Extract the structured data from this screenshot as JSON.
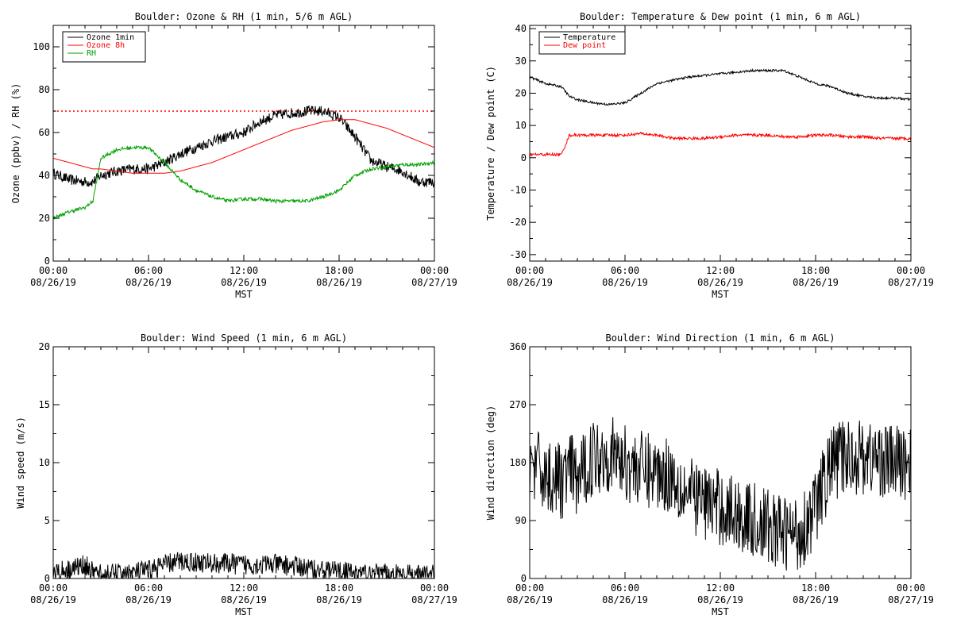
{
  "chart_data": [
    {
      "type": "line",
      "title": "Boulder: Ozone & RH (1 min, 5/6 m AGL)",
      "xlabel": "MST",
      "ylabel": "Ozone (ppbv) / RH (%)",
      "xlim": [
        "08/26/19 00:00",
        "08/27/19 00:00"
      ],
      "ylim": [
        0,
        110
      ],
      "grid": false,
      "legend_position": "top-left",
      "xticks": [
        {
          "label": "00:00",
          "sublabel": "08/26/19"
        },
        {
          "label": "06:00",
          "sublabel": "08/26/19"
        },
        {
          "label": "12:00",
          "sublabel": "08/26/19"
        },
        {
          "label": "18:00",
          "sublabel": "08/26/19"
        },
        {
          "label": "00:00",
          "sublabel": "08/27/19"
        }
      ],
      "yticks": [
        0,
        20,
        40,
        60,
        80,
        100
      ],
      "reference_line": {
        "y": 70,
        "style": "dotted",
        "color": "#ff0000"
      },
      "x": [
        "00:00",
        "01:00",
        "02:00",
        "02:30",
        "03:00",
        "04:00",
        "05:00",
        "06:00",
        "07:00",
        "08:00",
        "09:00",
        "10:00",
        "11:00",
        "12:00",
        "13:00",
        "14:00",
        "15:00",
        "16:00",
        "17:00",
        "18:00",
        "19:00",
        "20:00",
        "21:00",
        "22:00",
        "23:00",
        "24:00"
      ],
      "series": [
        {
          "name": "Ozone 1min",
          "color": "#000000",
          "noise": 2.5,
          "values": [
            41,
            38,
            37,
            37,
            40,
            42,
            43,
            43,
            46,
            50,
            53,
            56,
            58,
            60,
            65,
            68,
            69,
            70,
            70,
            67,
            58,
            47,
            44,
            42,
            37,
            37
          ]
        },
        {
          "name": "Ozone 8h",
          "color": "#ff0000",
          "noise": 0,
          "values": [
            48,
            46,
            44,
            43,
            43,
            42,
            41,
            41,
            41,
            42,
            44,
            46,
            49,
            52,
            55,
            58,
            61,
            63,
            65,
            66,
            66,
            64,
            62,
            59,
            56,
            53
          ]
        },
        {
          "name": "RH",
          "color": "#00a000",
          "noise": 0.8,
          "values": [
            20,
            23,
            25,
            28,
            48,
            52,
            53,
            53,
            46,
            38,
            33,
            30,
            28,
            29,
            29,
            28,
            28,
            28,
            30,
            33,
            40,
            43,
            44,
            45,
            45,
            46
          ]
        }
      ]
    },
    {
      "type": "line",
      "title": "Boulder: Temperature & Dew point (1 min, 6 m AGL)",
      "xlabel": "MST",
      "ylabel": "Temperature / Dew point (C)",
      "xlim": [
        "08/26/19 00:00",
        "08/27/19 00:00"
      ],
      "ylim": [
        -32,
        41
      ],
      "grid": false,
      "legend_position": "top-left",
      "xticks": [
        {
          "label": "00:00",
          "sublabel": "08/26/19"
        },
        {
          "label": "06:00",
          "sublabel": "08/26/19"
        },
        {
          "label": "12:00",
          "sublabel": "08/26/19"
        },
        {
          "label": "18:00",
          "sublabel": "08/26/19"
        },
        {
          "label": "00:00",
          "sublabel": "08/27/19"
        }
      ],
      "yticks": [
        -30,
        -20,
        -10,
        0,
        10,
        20,
        30,
        40
      ],
      "x": [
        "00:00",
        "01:00",
        "02:00",
        "02:30",
        "03:00",
        "04:00",
        "05:00",
        "06:00",
        "07:00",
        "08:00",
        "09:00",
        "10:00",
        "11:00",
        "12:00",
        "13:00",
        "14:00",
        "15:00",
        "16:00",
        "17:00",
        "18:00",
        "19:00",
        "20:00",
        "21:00",
        "22:00",
        "23:00",
        "24:00"
      ],
      "series": [
        {
          "name": "Temperature",
          "color": "#000000",
          "noise": 0.35,
          "values": [
            25,
            23,
            22,
            19,
            18,
            17,
            16.5,
            17,
            20,
            23,
            24,
            25,
            25.5,
            26,
            26.5,
            27,
            27,
            27,
            25,
            23,
            22,
            20,
            19,
            18.5,
            18.5,
            18
          ]
        },
        {
          "name": "Dew point",
          "color": "#ff0000",
          "noise": 0.45,
          "values": [
            1,
            1,
            1,
            7,
            7,
            7,
            7,
            7,
            7.5,
            7,
            6,
            6,
            6,
            6.5,
            7,
            7,
            7,
            6.5,
            6.5,
            7,
            7,
            6.5,
            6.5,
            6,
            6,
            6
          ]
        }
      ]
    },
    {
      "type": "line",
      "title": "Boulder: Wind Speed (1 min, 6 m AGL)",
      "xlabel": "MST",
      "ylabel": "Wind speed (m/s)",
      "xlim": [
        "08/26/19 00:00",
        "08/27/19 00:00"
      ],
      "ylim": [
        0,
        20
      ],
      "grid": false,
      "xticks": [
        {
          "label": "00:00",
          "sublabel": "08/26/19"
        },
        {
          "label": "06:00",
          "sublabel": "08/26/19"
        },
        {
          "label": "12:00",
          "sublabel": "08/26/19"
        },
        {
          "label": "18:00",
          "sublabel": "08/26/19"
        },
        {
          "label": "00:00",
          "sublabel": "08/27/19"
        }
      ],
      "yticks": [
        0,
        5,
        10,
        15,
        20
      ],
      "x": [
        "00:00",
        "01:00",
        "02:00",
        "02:30",
        "03:00",
        "04:00",
        "05:00",
        "06:00",
        "07:00",
        "08:00",
        "09:00",
        "10:00",
        "11:00",
        "12:00",
        "13:00",
        "14:00",
        "15:00",
        "16:00",
        "17:00",
        "18:00",
        "19:00",
        "20:00",
        "21:00",
        "22:00",
        "23:00",
        "24:00"
      ],
      "series": [
        {
          "name": "",
          "color": "#000000",
          "noise": 0.9,
          "floor": 0,
          "values": [
            0.6,
            0.8,
            1.2,
            0.5,
            0.4,
            0.4,
            0.5,
            0.7,
            1.2,
            1.5,
            1.4,
            1.3,
            1.3,
            1.2,
            1.2,
            1.2,
            1.1,
            0.9,
            0.7,
            0.6,
            0.5,
            0.4,
            0.4,
            0.3,
            0.3,
            0.3
          ]
        }
      ]
    },
    {
      "type": "line",
      "title": "Boulder: Wind Direction (1 min, 6 m AGL)",
      "xlabel": "MST",
      "ylabel": "Wind direction (deg)",
      "xlim": [
        "08/26/19 00:00",
        "08/27/19 00:00"
      ],
      "ylim": [
        0,
        360
      ],
      "grid": false,
      "xticks": [
        {
          "label": "00:00",
          "sublabel": "08/26/19"
        },
        {
          "label": "06:00",
          "sublabel": "08/26/19"
        },
        {
          "label": "12:00",
          "sublabel": "08/26/19"
        },
        {
          "label": "18:00",
          "sublabel": "08/26/19"
        },
        {
          "label": "00:00",
          "sublabel": "08/27/19"
        }
      ],
      "yticks": [
        0,
        90,
        180,
        270,
        360
      ],
      "x": [
        "00:00",
        "01:00",
        "02:00",
        "02:30",
        "03:00",
        "04:00",
        "05:00",
        "06:00",
        "07:00",
        "08:00",
        "09:00",
        "10:00",
        "11:00",
        "12:00",
        "13:00",
        "14:00",
        "15:00",
        "16:00",
        "17:00",
        "18:00",
        "19:00",
        "20:00",
        "21:00",
        "22:00",
        "23:00",
        "24:00"
      ],
      "series": [
        {
          "name": "",
          "color": "#000000",
          "noise": 60,
          "floor": 0,
          "ceil": 360,
          "values": [
            180,
            160,
            150,
            170,
            150,
            190,
            195,
            180,
            170,
            165,
            160,
            130,
            120,
            110,
            100,
            90,
            80,
            70,
            70,
            110,
            180,
            190,
            190,
            185,
            180,
            180
          ]
        }
      ]
    }
  ]
}
